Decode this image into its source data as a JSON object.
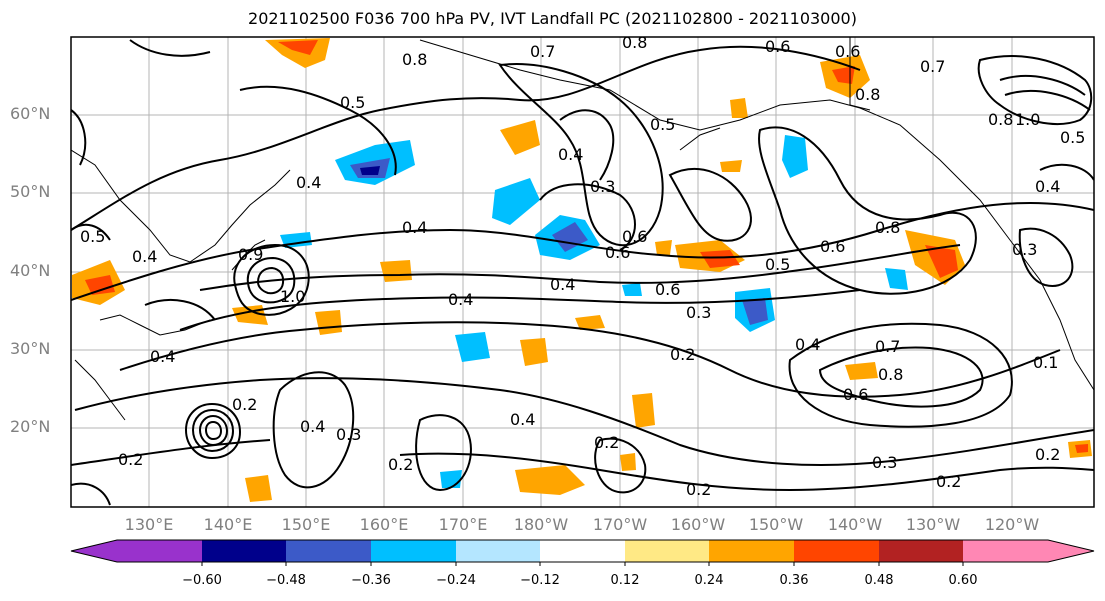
{
  "title": "2021102500 F036 700 hPa PV, IVT Landfall PC (2021102800 - 2021103000)",
  "lat_labels": [
    "60°N",
    "50°N",
    "40°N",
    "30°N",
    "20°N"
  ],
  "lon_labels": [
    "130°E",
    "140°E",
    "150°E",
    "160°E",
    "170°E",
    "180°W",
    "170°W",
    "160°W",
    "150°W",
    "140°W",
    "130°W",
    "120°W"
  ],
  "colorbar": {
    "ticks": [
      "−0.60",
      "−0.48",
      "−0.36",
      "−0.24",
      "−0.12",
      "0.12",
      "0.24",
      "0.36",
      "0.48",
      "0.60"
    ],
    "colors": [
      "#9932cc",
      "#00008b",
      "#3c5ac8",
      "#00bfff",
      "#b4e6ff",
      "#ffffff",
      "#ffe985",
      "#ffa500",
      "#ff4500",
      "#b22222",
      "#ff87b4"
    ]
  },
  "contour_labels": [
    "0.8",
    "0.7",
    "0.6",
    "0.6",
    "0.8",
    "0.5",
    "0.4",
    "0.3",
    "0.5",
    "0.4",
    "0.4",
    "0.6",
    "0.8",
    "0.6",
    "0.5",
    "0.4",
    "0.4",
    "0.6",
    "0.3",
    "0.2",
    "0.4",
    "0.7",
    "0.8",
    "0.6",
    "0.4",
    "0.3",
    "0.2",
    "0.2",
    "0.4",
    "0.2",
    "0.3",
    "0.2",
    "0.7",
    "0.8",
    "1.0",
    "0.5",
    "0.4",
    "0.3",
    "0.2",
    "0.1",
    "0.2",
    "0.5",
    "0.4",
    "0.9",
    "1.0",
    "0.8",
    "0.6",
    "0.4",
    "0.2"
  ]
}
